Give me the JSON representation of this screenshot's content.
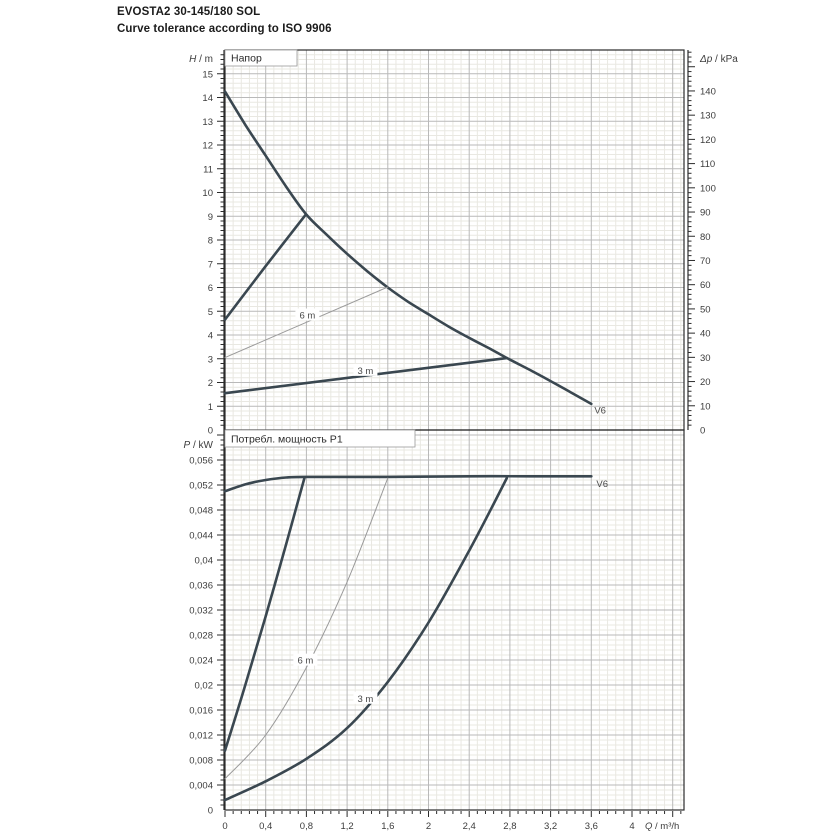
{
  "header": {
    "title": "EVOSTA2 30-145/180 SOL",
    "subtitle": "Curve tolerance according to ISO 9906"
  },
  "colors": {
    "curve": "#3a4750",
    "thin_curve": "#9a9a9a",
    "grid_major": "#b9b9b9",
    "grid_minor": "#e9e8e2",
    "axis": "#2b2b2b",
    "tick_text": "#3c3c3c",
    "label_text": "#4a4a4a",
    "box_border": "#999999"
  },
  "chart_data": [
    {
      "type": "line",
      "title": "Напор",
      "ylabel": "H / m",
      "y2label": "Δp / kPa",
      "xlabel": "",
      "ylim": [
        0,
        16
      ],
      "y2lim": [
        0,
        157
      ],
      "xlim": [
        0,
        4.51
      ],
      "grid": true,
      "y_ticks": [
        "0",
        "1",
        "2",
        "3",
        "4",
        "5",
        "6",
        "7",
        "8",
        "9",
        "10",
        "11",
        "12",
        "13",
        "14",
        "15"
      ],
      "y2_ticks": [
        "0",
        "10",
        "20",
        "30",
        "40",
        "50",
        "60",
        "70",
        "80",
        "90",
        "100",
        "110",
        "120",
        "130",
        "140"
      ],
      "series": [
        {
          "name": "max-speed-curve",
          "label": "V6",
          "thin": false,
          "points": [
            [
              0,
              14.25
            ],
            [
              0.2,
              12.85
            ],
            [
              0.4,
              11.55
            ],
            [
              0.6,
              10.25
            ],
            [
              0.8,
              9.07
            ],
            [
              1.0,
              8.22
            ],
            [
              1.2,
              7.42
            ],
            [
              1.4,
              6.68
            ],
            [
              1.6,
              6.0
            ],
            [
              1.8,
              5.4
            ],
            [
              2.0,
              4.87
            ],
            [
              2.2,
              4.35
            ],
            [
              2.4,
              3.88
            ],
            [
              2.6,
              3.43
            ],
            [
              2.77,
              3.03
            ],
            [
              3.0,
              2.52
            ],
            [
              3.2,
              2.06
            ],
            [
              3.4,
              1.58
            ],
            [
              3.6,
              1.1
            ]
          ]
        },
        {
          "name": "min-flow-boundary",
          "label": "",
          "thin": false,
          "points": [
            [
              0,
              4.65
            ],
            [
              0.4,
              6.9
            ],
            [
              0.79,
              9.05
            ]
          ]
        },
        {
          "name": "setpoint-6m",
          "label": "6 m",
          "thin": true,
          "points": [
            [
              0,
              3.05
            ],
            [
              1.6,
              6.02
            ]
          ]
        },
        {
          "name": "setpoint-3m",
          "label": "3 m",
          "thin": false,
          "points": [
            [
              0,
              1.55
            ],
            [
              2.77,
              3.03
            ]
          ]
        }
      ],
      "annotations": [
        {
          "text": "6 m",
          "x": 0.81,
          "y": 4.82,
          "boxed": true
        },
        {
          "text": "3 m",
          "x": 1.38,
          "y": 2.49,
          "boxed": true
        },
        {
          "text": "V6",
          "x": 3.63,
          "y": 0.82,
          "boxed": false
        }
      ]
    },
    {
      "type": "line",
      "title": "Потребл. мощность P1",
      "ylabel": "P / kW",
      "y2label": "",
      "xlabel": "Q / m³/h",
      "ylim": [
        0,
        0.0608
      ],
      "xlim": [
        0,
        4.51
      ],
      "grid": true,
      "y_ticks": [
        "0",
        "0,004",
        "0,008",
        "0,012",
        "0,016",
        "0,02",
        "0,024",
        "0,028",
        "0,032",
        "0,036",
        "0,04",
        "0,044",
        "0,048",
        "0,052",
        "0,056"
      ],
      "x_ticks": [
        "0",
        "0,4",
        "0,8",
        "1,2",
        "1,6",
        "2",
        "2,4",
        "2,8",
        "3,2",
        "3,6",
        "4"
      ],
      "series": [
        {
          "name": "p1-max-speed",
          "label": "V6",
          "thin": false,
          "points": [
            [
              0,
              0.051
            ],
            [
              0.2,
              0.0521
            ],
            [
              0.4,
              0.0528
            ],
            [
              0.6,
              0.0532
            ],
            [
              0.8,
              0.0533
            ],
            [
              1.6,
              0.0533
            ],
            [
              2.4,
              0.0534
            ],
            [
              3.0,
              0.0534
            ],
            [
              3.6,
              0.0534
            ]
          ]
        },
        {
          "name": "p1-min-flow-boundary",
          "label": "",
          "thin": false,
          "points": [
            [
              0,
              0.0095
            ],
            [
              0.2,
              0.02
            ],
            [
              0.4,
              0.031
            ],
            [
              0.6,
              0.0425
            ],
            [
              0.78,
              0.0531
            ]
          ]
        },
        {
          "name": "p1-setpoint-6m",
          "label": "6 m",
          "thin": true,
          "points": [
            [
              0,
              0.005
            ],
            [
              0.4,
              0.012
            ],
            [
              0.8,
              0.0228
            ],
            [
              1.2,
              0.0365
            ],
            [
              1.6,
              0.0531
            ]
          ]
        },
        {
          "name": "p1-setpoint-3m",
          "label": "3 m",
          "thin": false,
          "points": [
            [
              0,
              0.0016
            ],
            [
              0.4,
              0.0046
            ],
            [
              0.8,
              0.0082
            ],
            [
              1.2,
              0.0131
            ],
            [
              1.6,
              0.0205
            ],
            [
              2.0,
              0.03
            ],
            [
              2.4,
              0.0415
            ],
            [
              2.77,
              0.0531
            ]
          ]
        }
      ],
      "annotations": [
        {
          "text": "6 m",
          "x": 0.79,
          "y": 0.0239,
          "boxed": true
        },
        {
          "text": "3 m",
          "x": 1.38,
          "y": 0.0178,
          "boxed": true
        },
        {
          "text": "V6",
          "x": 3.65,
          "y": 0.0522,
          "boxed": false
        }
      ]
    }
  ]
}
